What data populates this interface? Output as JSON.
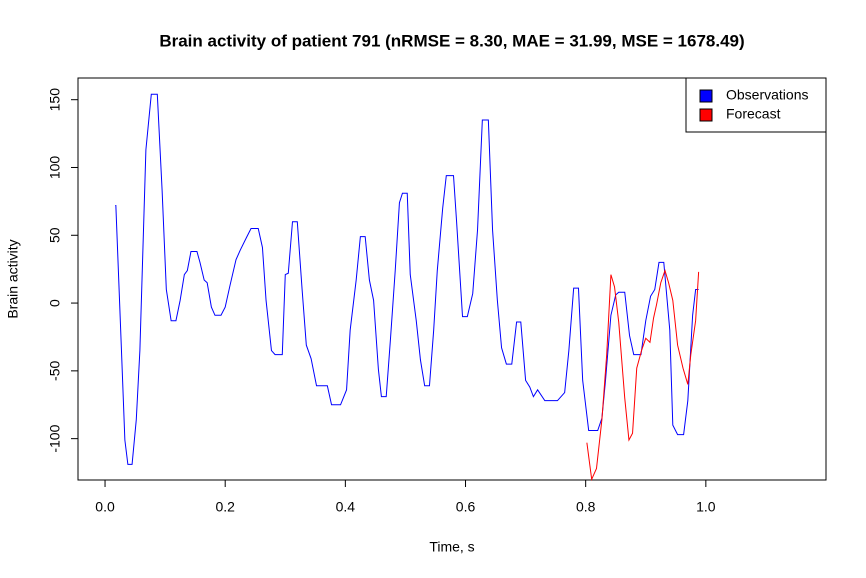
{
  "chart_data": {
    "type": "line",
    "title": "Brain activity of patient 791 (nRMSE = 8.30, MAE = 31.99, MSE = 1678.49)",
    "x_label": "Time, s",
    "y_label": "Brain activity",
    "xlim": [
      -0.045,
      1.2
    ],
    "ylim": [
      -130.5,
      166
    ],
    "xticks": [
      {
        "value": 0,
        "label": "0.0"
      },
      0.2,
      0.4,
      0.6,
      0.8,
      {
        "value": 1,
        "label": "1.0"
      }
    ],
    "yticks": [
      -100,
      -50,
      0,
      50,
      100,
      150
    ],
    "legend": "topright",
    "series": [
      {
        "name": "Observations",
        "color": "#0000ff",
        "x": [
          0.017,
          0.018,
          0.027,
          0.033,
          0.038,
          0.045,
          0.052,
          0.058,
          0.068,
          0.077,
          0.087,
          0.095,
          0.102,
          0.11,
          0.118,
          0.125,
          0.132,
          0.137,
          0.143,
          0.153,
          0.158,
          0.165,
          0.17,
          0.177,
          0.183,
          0.193,
          0.2,
          0.208,
          0.218,
          0.225,
          0.235,
          0.243,
          0.255,
          0.262,
          0.268,
          0.277,
          0.283,
          0.295,
          0.3,
          0.305,
          0.312,
          0.32,
          0.328,
          0.335,
          0.343,
          0.352,
          0.37,
          0.377,
          0.392,
          0.402,
          0.408,
          0.418,
          0.425,
          0.433,
          0.44,
          0.447,
          0.455,
          0.46,
          0.468,
          0.475,
          0.483,
          0.49,
          0.495,
          0.503,
          0.508,
          0.518,
          0.525,
          0.532,
          0.54,
          0.547,
          0.553,
          0.562,
          0.568,
          0.58,
          0.585,
          0.595,
          0.603,
          0.612,
          0.62,
          0.628,
          0.638,
          0.645,
          0.653,
          0.66,
          0.668,
          0.677,
          0.685,
          0.692,
          0.7,
          0.707,
          0.713,
          0.72,
          0.732,
          0.753,
          0.765,
          0.772,
          0.78,
          0.788,
          0.795,
          0.805,
          0.82,
          0.827,
          0.833,
          0.842,
          0.85,
          0.855,
          0.865,
          0.873,
          0.88,
          0.892,
          0.9,
          0.908,
          0.915,
          0.922,
          0.93,
          0.94,
          0.945,
          0.953,
          0.963,
          0.97,
          0.978,
          0.983,
          0.988
        ],
        "values": [
          72,
          72,
          -31,
          -101,
          -119,
          -119,
          -86,
          -35,
          113,
          154,
          154,
          83,
          10,
          -13,
          -13,
          2,
          21,
          24,
          38,
          38,
          30,
          17,
          15,
          -3,
          -9,
          -9,
          -3,
          13,
          32,
          39,
          48,
          55,
          55,
          41,
          2,
          -35,
          -38,
          -38,
          21,
          22,
          60,
          60,
          10,
          -31,
          -41,
          -61,
          -61,
          -75,
          -75,
          -64,
          -20,
          17,
          49,
          49,
          17,
          2,
          -49,
          -69,
          -69,
          -27,
          24,
          74,
          81,
          81,
          21,
          -13,
          -42,
          -61,
          -61,
          -20,
          24,
          70,
          94,
          94,
          61,
          -10,
          -10,
          7,
          54,
          135,
          135,
          54,
          2,
          -33,
          -45,
          -45,
          -14,
          -14,
          -57,
          -62,
          -69,
          -64,
          -72,
          -72,
          -66,
          -35,
          11,
          11,
          -57,
          -94,
          -94,
          -85,
          -57,
          -9,
          6,
          8,
          8,
          -24,
          -38,
          -38,
          -13,
          5,
          10,
          30,
          30,
          -20,
          -90,
          -97,
          -97,
          -72,
          -9,
          10,
          10
        ]
      },
      {
        "name": "Forecast",
        "color": "#ff0000",
        "x": [
          0.802,
          0.81,
          0.818,
          0.827,
          0.835,
          0.842,
          0.848,
          0.855,
          0.865,
          0.872,
          0.878,
          0.885,
          0.893,
          0.9,
          0.907,
          0.913,
          0.918,
          0.925,
          0.932,
          0.938,
          0.945,
          0.953,
          0.962,
          0.97,
          0.975,
          0.983,
          0.988
        ],
        "values": [
          -103,
          -130,
          -122,
          -86,
          -38,
          21,
          12,
          -14,
          -70,
          -101,
          -96,
          -48,
          -35,
          -26,
          -29,
          -11,
          -1,
          15,
          24,
          15,
          2,
          -31,
          -48,
          -60,
          -38,
          -13,
          23
        ]
      }
    ]
  }
}
